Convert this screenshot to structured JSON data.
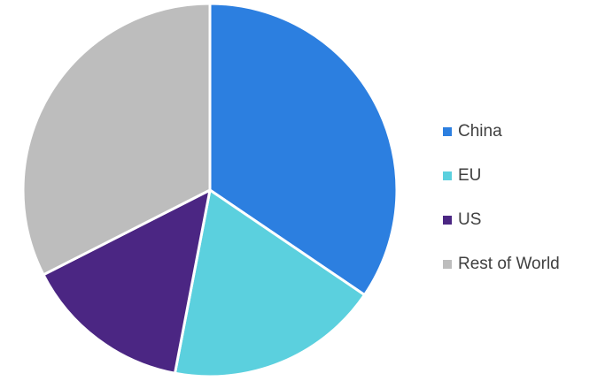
{
  "chart_data": {
    "type": "pie",
    "title": "",
    "categories": [
      "China",
      "EU",
      "US",
      "Rest of World"
    ],
    "values": [
      34.5,
      18.5,
      14.5,
      32.5
    ],
    "colors": [
      "#2c7fe0",
      "#5bd0de",
      "#4b2683",
      "#bdbdbd"
    ],
    "start_angle_deg": 0,
    "direction": "clockwise",
    "legend": {
      "position": "right",
      "items": [
        {
          "label": "China",
          "color": "#2c7fe0"
        },
        {
          "label": "EU",
          "color": "#5bd0de"
        },
        {
          "label": "US",
          "color": "#4b2683"
        },
        {
          "label": "Rest of World",
          "color": "#bdbdbd"
        }
      ]
    }
  }
}
